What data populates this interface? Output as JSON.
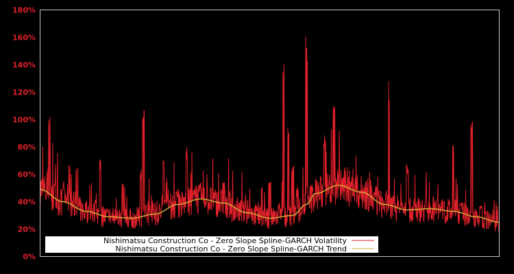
{
  "chart_data": {
    "type": "line",
    "title": "",
    "xlabel": "",
    "ylabel": "",
    "ylim": [
      0,
      180
    ],
    "y_ticks": [
      "0%",
      "20%",
      "40%",
      "60%",
      "80%",
      "100%",
      "120%",
      "140%",
      "160%",
      "180%"
    ],
    "x_ticks": [],
    "grid": false,
    "legend_position": "lower-left",
    "colors": {
      "background": "#000000",
      "frame": "#c8c8c8",
      "tick_label": "#e0202a",
      "volatility": "#e0202a",
      "trend": "#d4a838",
      "legend_bg": "#ffffff"
    },
    "series": [
      {
        "name": "Nishimatsu Construction Co - Zero Slope Spline-GARCH Volatility",
        "x": [
          0,
          0.02,
          0.05,
          0.08,
          0.1,
          0.13,
          0.15,
          0.18,
          0.2,
          0.22,
          0.225,
          0.24,
          0.27,
          0.3,
          0.32,
          0.34,
          0.36,
          0.38,
          0.4,
          0.42,
          0.44,
          0.46,
          0.48,
          0.5,
          0.52,
          0.53,
          0.54,
          0.55,
          0.56,
          0.58,
          0.6,
          0.62,
          0.64,
          0.66,
          0.68,
          0.7,
          0.72,
          0.74,
          0.76,
          0.78,
          0.8,
          0.82,
          0.84,
          0.86,
          0.88,
          0.9,
          0.92,
          0.94,
          0.96,
          0.98,
          1.0
        ],
        "values": [
          35,
          107,
          55,
          70,
          40,
          74,
          30,
          55,
          30,
          65,
          114,
          35,
          75,
          50,
          80,
          40,
          38,
          32,
          55,
          28,
          25,
          30,
          34,
          60,
          40,
          142,
          98,
          70,
          50,
          161,
          45,
          92,
          112,
          40,
          50,
          40,
          62,
          35,
          131,
          40,
          70,
          35,
          68,
          40,
          42,
          86,
          30,
          103,
          40,
          25,
          20
        ]
      },
      {
        "name": "Nishimatsu Construction Co - Zero Slope Spline-GARCH Trend",
        "x": [
          0,
          0.05,
          0.1,
          0.15,
          0.2,
          0.25,
          0.3,
          0.35,
          0.4,
          0.45,
          0.5,
          0.55,
          0.58,
          0.6,
          0.65,
          0.7,
          0.75,
          0.8,
          0.85,
          0.9,
          0.95,
          1.0
        ],
        "values": [
          49,
          40,
          33,
          29,
          28,
          31,
          38,
          42,
          39,
          32,
          28,
          30,
          38,
          46,
          52,
          47,
          38,
          34,
          35,
          33,
          29,
          25
        ]
      }
    ]
  },
  "legend": {
    "items": [
      {
        "label": "Nishimatsu Construction Co - Zero Slope Spline-GARCH Volatility",
        "color": "#e0202a"
      },
      {
        "label": "Nishimatsu Construction Co - Zero Slope Spline-GARCH Trend",
        "color": "#d4a838"
      }
    ]
  }
}
